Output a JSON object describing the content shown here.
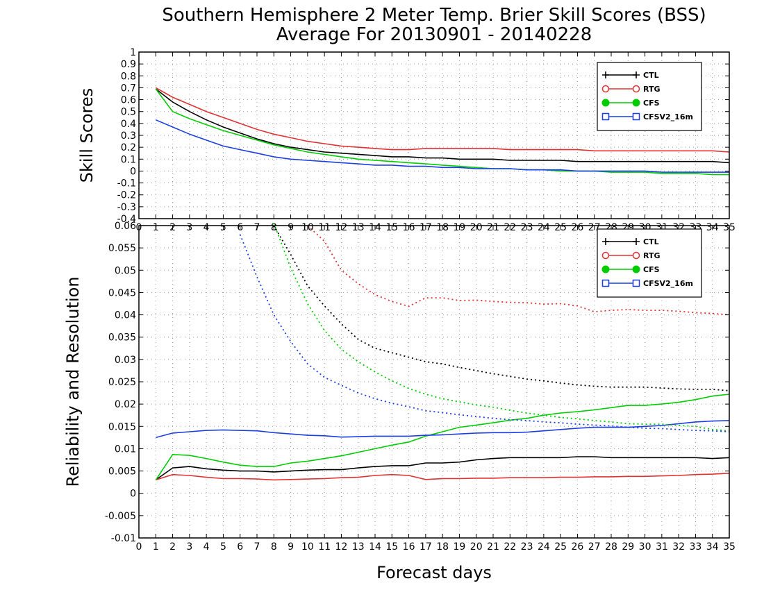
{
  "title_line1": "Southern Hemisphere 2 Meter Temp. Brier Skill Scores (BSS)",
  "title_line2": "Average For 20130901 - 20140228",
  "xlabel": "Forecast days",
  "colors": {
    "CTL": "#000000",
    "RTG": "#e03030",
    "CFS": "#00cc00",
    "CFSV2_16m": "#1a3ce0"
  },
  "chart_data": [
    {
      "type": "line",
      "name": "skill",
      "ylabel": "Skill Scores",
      "xlim": [
        0,
        35
      ],
      "ylim": [
        -0.4,
        1
      ],
      "xticks": [
        0,
        1,
        2,
        3,
        4,
        5,
        6,
        7,
        8,
        9,
        10,
        11,
        12,
        13,
        14,
        15,
        16,
        17,
        18,
        19,
        20,
        21,
        22,
        23,
        24,
        25,
        26,
        27,
        28,
        29,
        30,
        31,
        32,
        33,
        34,
        35
      ],
      "yticks": [
        -0.4,
        -0.3,
        -0.2,
        -0.1,
        0,
        0.1,
        0.2,
        0.3,
        0.4,
        0.5,
        0.6,
        0.7,
        0.8,
        0.9,
        1
      ],
      "ytick_labels": [
        "-0.4",
        "-0.3",
        "-0.2",
        "-0.1",
        "0",
        "0.1",
        "0.2",
        "0.3",
        "0.4",
        "0.5",
        "0.6",
        "0.7",
        "0.8",
        "0.9",
        "1"
      ],
      "grid": true,
      "legend": "top-right",
      "x": [
        1,
        2,
        3,
        4,
        5,
        6,
        7,
        8,
        9,
        10,
        11,
        12,
        13,
        14,
        15,
        16,
        17,
        18,
        19,
        20,
        21,
        22,
        23,
        24,
        25,
        26,
        27,
        28,
        29,
        30,
        31,
        32,
        33,
        34,
        35
      ],
      "series": [
        {
          "name": "CTL",
          "marker": "plus",
          "values": [
            0.69,
            0.58,
            0.5,
            0.43,
            0.37,
            0.32,
            0.27,
            0.23,
            0.2,
            0.18,
            0.16,
            0.15,
            0.14,
            0.13,
            0.12,
            0.12,
            0.11,
            0.11,
            0.1,
            0.1,
            0.1,
            0.09,
            0.09,
            0.09,
            0.09,
            0.08,
            0.08,
            0.08,
            0.08,
            0.08,
            0.08,
            0.08,
            0.08,
            0.08,
            0.07
          ]
        },
        {
          "name": "RTG",
          "marker": "circle-open",
          "values": [
            0.7,
            0.62,
            0.56,
            0.5,
            0.45,
            0.4,
            0.35,
            0.31,
            0.28,
            0.25,
            0.23,
            0.21,
            0.2,
            0.19,
            0.18,
            0.18,
            0.19,
            0.19,
            0.19,
            0.19,
            0.19,
            0.18,
            0.18,
            0.18,
            0.18,
            0.18,
            0.17,
            0.17,
            0.17,
            0.17,
            0.17,
            0.17,
            0.17,
            0.17,
            0.16
          ]
        },
        {
          "name": "CFS",
          "marker": "circle-filled",
          "values": [
            0.69,
            0.5,
            0.44,
            0.39,
            0.34,
            0.3,
            0.26,
            0.22,
            0.19,
            0.16,
            0.14,
            0.12,
            0.1,
            0.09,
            0.08,
            0.07,
            0.06,
            0.05,
            0.04,
            0.03,
            0.02,
            0.02,
            0.01,
            0.01,
            0.0,
            0.0,
            0.0,
            -0.01,
            -0.01,
            -0.01,
            -0.02,
            -0.02,
            -0.02,
            -0.03,
            -0.03
          ]
        },
        {
          "name": "CFSV2_16m",
          "marker": "square-open",
          "values": [
            0.43,
            0.37,
            0.31,
            0.26,
            0.21,
            0.18,
            0.15,
            0.12,
            0.1,
            0.09,
            0.08,
            0.07,
            0.06,
            0.05,
            0.05,
            0.04,
            0.04,
            0.03,
            0.03,
            0.02,
            0.02,
            0.02,
            0.01,
            0.01,
            0.01,
            0.0,
            0.0,
            0.0,
            0.0,
            0.0,
            -0.01,
            -0.01,
            -0.01,
            -0.01,
            -0.01
          ]
        }
      ]
    },
    {
      "type": "line",
      "name": "reliability",
      "ylabel": "Reliability and Resolution",
      "xlim": [
        0,
        35
      ],
      "ylim": [
        -0.01,
        0.06
      ],
      "xticks": [
        0,
        1,
        2,
        3,
        4,
        5,
        6,
        7,
        8,
        9,
        10,
        11,
        12,
        13,
        14,
        15,
        16,
        17,
        18,
        19,
        20,
        21,
        22,
        23,
        24,
        25,
        26,
        27,
        28,
        29,
        30,
        31,
        32,
        33,
        34,
        35
      ],
      "yticks": [
        -0.01,
        -0.005,
        0,
        0.005,
        0.01,
        0.015,
        0.02,
        0.025,
        0.03,
        0.035,
        0.04,
        0.045,
        0.05,
        0.055,
        0.06
      ],
      "ytick_labels": [
        "-0.01",
        "-0.005",
        "0",
        "0.005",
        "0.01",
        "0.015",
        "0.02",
        "0.025",
        "0.03",
        "0.035",
        "0.04",
        "0.045",
        "0.05",
        "0.055",
        "0.06"
      ],
      "grid": true,
      "legend": "top-right",
      "x": [
        1,
        2,
        3,
        4,
        5,
        6,
        7,
        8,
        9,
        10,
        11,
        12,
        13,
        14,
        15,
        16,
        17,
        18,
        19,
        20,
        21,
        22,
        23,
        24,
        25,
        26,
        27,
        28,
        29,
        30,
        31,
        32,
        33,
        34,
        35
      ],
      "series": [
        {
          "name": "CTL",
          "style": "solid",
          "values": [
            0.003,
            0.0057,
            0.006,
            0.0055,
            0.0052,
            0.005,
            0.005,
            0.0048,
            0.005,
            0.0052,
            0.0053,
            0.0053,
            0.0057,
            0.006,
            0.0062,
            0.0062,
            0.0068,
            0.0068,
            0.007,
            0.0075,
            0.0078,
            0.008,
            0.008,
            0.008,
            0.008,
            0.0082,
            0.0082,
            0.008,
            0.008,
            0.008,
            0.008,
            0.008,
            0.008,
            0.0078,
            0.008
          ]
        },
        {
          "name": "RTG",
          "style": "solid",
          "values": [
            0.003,
            0.0042,
            0.004,
            0.0036,
            0.0033,
            0.0033,
            0.0032,
            0.003,
            0.0031,
            0.0032,
            0.0033,
            0.0035,
            0.0036,
            0.004,
            0.0042,
            0.004,
            0.0031,
            0.0033,
            0.0033,
            0.0034,
            0.0034,
            0.0035,
            0.0035,
            0.0035,
            0.0036,
            0.0036,
            0.0037,
            0.0037,
            0.0038,
            0.0038,
            0.0039,
            0.004,
            0.0042,
            0.0043,
            0.0045
          ]
        },
        {
          "name": "CFS",
          "style": "solid",
          "values": [
            0.003,
            0.0087,
            0.0085,
            0.0078,
            0.007,
            0.0063,
            0.006,
            0.006,
            0.0068,
            0.0072,
            0.0078,
            0.0084,
            0.0092,
            0.01,
            0.0108,
            0.0115,
            0.0128,
            0.0138,
            0.0148,
            0.0153,
            0.0158,
            0.0164,
            0.0168,
            0.0175,
            0.018,
            0.0183,
            0.0187,
            0.0192,
            0.0197,
            0.0197,
            0.02,
            0.0204,
            0.021,
            0.0218,
            0.0222
          ]
        },
        {
          "name": "CFSV2_16m",
          "style": "solid",
          "values": [
            0.0125,
            0.0135,
            0.0138,
            0.0141,
            0.0142,
            0.0141,
            0.014,
            0.0136,
            0.0133,
            0.013,
            0.0129,
            0.0126,
            0.0127,
            0.0128,
            0.0128,
            0.0128,
            0.013,
            0.0131,
            0.0133,
            0.0135,
            0.0136,
            0.0136,
            0.0137,
            0.014,
            0.0143,
            0.0146,
            0.0148,
            0.0148,
            0.0148,
            0.015,
            0.0152,
            0.0156,
            0.016,
            0.0162,
            0.0163
          ]
        },
        {
          "name": "CTL",
          "style": "dotted",
          "values": [
            null,
            null,
            null,
            null,
            null,
            null,
            null,
            0.06,
            0.0535,
            0.0465,
            0.042,
            0.038,
            0.0345,
            0.0325,
            0.0315,
            0.0305,
            0.0295,
            0.029,
            0.0282,
            0.0275,
            0.0268,
            0.0262,
            0.0256,
            0.0252,
            0.0247,
            0.0243,
            0.024,
            0.0238,
            0.0238,
            0.0238,
            0.0236,
            0.0234,
            0.0233,
            0.0233,
            0.023
          ]
        },
        {
          "name": "RTG",
          "style": "dotted",
          "values": [
            null,
            null,
            null,
            null,
            null,
            null,
            null,
            null,
            null,
            0.06,
            0.0565,
            0.05,
            0.047,
            0.0445,
            0.043,
            0.0419,
            0.0438,
            0.0438,
            0.0432,
            0.0433,
            0.043,
            0.0428,
            0.0427,
            0.0424,
            0.0425,
            0.042,
            0.0407,
            0.041,
            0.0412,
            0.041,
            0.041,
            0.0408,
            0.0405,
            0.0403,
            0.04
          ]
        },
        {
          "name": "CFS",
          "style": "dotted",
          "values": [
            null,
            null,
            null,
            null,
            null,
            null,
            null,
            0.0605,
            0.0505,
            0.0425,
            0.0365,
            0.0323,
            0.0295,
            0.0272,
            0.0252,
            0.0235,
            0.0222,
            0.0212,
            0.0205,
            0.0198,
            0.0193,
            0.0186,
            0.018,
            0.0175,
            0.017,
            0.0167,
            0.0163,
            0.016,
            0.0156,
            0.0155,
            0.0155,
            0.0152,
            0.015,
            0.0143,
            0.014
          ]
        },
        {
          "name": "CFSV2_16m",
          "style": "dotted",
          "values": [
            null,
            null,
            null,
            null,
            null,
            0.058,
            0.0485,
            0.04,
            0.034,
            0.029,
            0.026,
            0.0242,
            0.0225,
            0.0212,
            0.0202,
            0.0194,
            0.0185,
            0.0181,
            0.0176,
            0.0172,
            0.0168,
            0.0165,
            0.0163,
            0.016,
            0.0158,
            0.0155,
            0.0153,
            0.0151,
            0.0148,
            0.0146,
            0.0145,
            0.0143,
            0.0141,
            0.014,
            0.0138
          ]
        }
      ]
    }
  ]
}
